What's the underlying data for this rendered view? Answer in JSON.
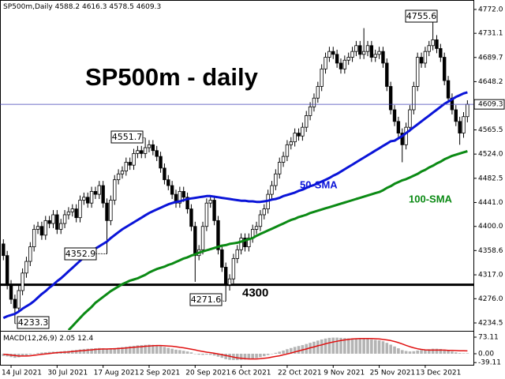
{
  "chart_data": {
    "type": "candlestick",
    "symbol": "SP500m,Daily",
    "title": "SP500m - daily",
    "categories": [
      null,
      null,
      "14 Jul 2021",
      null,
      null,
      null,
      null,
      null,
      null,
      null,
      null,
      null,
      null,
      null,
      "30 Jul 2021",
      null,
      null,
      null,
      null,
      null,
      null,
      null,
      null,
      null,
      null,
      null,
      "17 Aug 2021",
      null,
      null,
      null,
      null,
      null,
      null,
      null,
      null,
      null,
      null,
      null,
      "2 Sep 2021",
      null,
      null,
      null,
      null,
      null,
      null,
      null,
      null,
      null,
      null,
      null,
      "20 Sep 2021",
      null,
      null,
      null,
      null,
      null,
      null,
      null,
      null,
      null,
      null,
      null,
      "6 Oct 2021",
      null,
      null,
      null,
      null,
      null,
      null,
      null,
      null,
      null,
      null,
      null,
      "22 Oct 2021",
      null,
      null,
      null,
      null,
      null,
      null,
      null,
      null,
      null,
      null,
      null,
      "9 Nov 2021",
      null,
      null,
      null,
      null,
      null,
      null,
      null,
      null,
      null,
      null,
      null,
      "25 Nov 2021",
      null,
      null,
      null,
      null,
      null,
      null,
      null,
      null,
      null,
      null,
      null,
      "13 Dec 2021",
      null,
      null,
      null,
      null,
      null,
      null,
      null,
      null,
      null,
      null,
      null
    ],
    "open": [
      4370,
      4350,
      4300,
      4275,
      4260,
      4290,
      4320,
      4340,
      4365,
      4395,
      4400,
      4385,
      4410,
      4405,
      4420,
      4395,
      4405,
      4420,
      4425,
      4430,
      4415,
      4445,
      4450,
      4440,
      4460,
      4455,
      4470,
      4440,
      4410,
      4445,
      4480,
      4490,
      4495,
      4510,
      4505,
      4525,
      4530,
      4525,
      4535,
      4540,
      4530,
      4520,
      4500,
      4480,
      4470,
      4455,
      4440,
      4460,
      4450,
      4430,
      4400,
      4350,
      4360,
      4400,
      4440,
      4445,
      4410,
      4360,
      4330,
      4300,
      4310,
      4345,
      4360,
      4380,
      4365,
      4380,
      4395,
      4400,
      4420,
      4430,
      4455,
      4470,
      4490,
      4510,
      4520,
      4540,
      4545,
      4560,
      4555,
      4570,
      4590,
      4605,
      4620,
      4640,
      4670,
      4690,
      4700,
      4695,
      4680,
      4670,
      4685,
      4690,
      4700,
      4710,
      4695,
      4700,
      4710,
      4690,
      4695,
      4700,
      4680,
      4640,
      4600,
      4580,
      4560,
      4540,
      4570,
      4600,
      4640,
      4690,
      4680,
      4700,
      4710,
      4720,
      4705,
      4690,
      4650,
      4620,
      4600,
      4580,
      4560,
      4588.2
    ],
    "high": [
      4378,
      4358,
      4308,
      4283,
      4298,
      4328,
      4348,
      4373,
      4403,
      4408,
      4408,
      4418,
      4418,
      4428,
      4428,
      4413,
      4428,
      4433,
      4438,
      4438,
      4453,
      4458,
      4458,
      4468,
      4468,
      4478,
      4478,
      4448,
      4453,
      4488,
      4498,
      4503,
      4518,
      4518,
      4533,
      4538,
      4538,
      4551.7,
      4548,
      4548,
      4538,
      4528,
      4508,
      4488,
      4478,
      4463,
      4468,
      4468,
      4458,
      4438,
      4408,
      4368,
      4408,
      4448,
      4453,
      4453,
      4418,
      4368,
      4338,
      4318,
      4353,
      4368,
      4388,
      4388,
      4388,
      4403,
      4408,
      4428,
      4438,
      4463,
      4478,
      4498,
      4518,
      4528,
      4548,
      4553,
      4568,
      4568,
      4578,
      4598,
      4613,
      4628,
      4648,
      4678,
      4698,
      4708,
      4708,
      4703,
      4688,
      4693,
      4698,
      4708,
      4718,
      4718,
      4740,
      4718,
      4718,
      4703,
      4708,
      4708,
      4688,
      4648,
      4608,
      4588,
      4568,
      4578,
      4608,
      4648,
      4698,
      4698,
      4708,
      4718,
      4755.6,
      4728,
      4713,
      4698,
      4658,
      4628,
      4608,
      4588,
      4596,
      4616.3
    ],
    "low": [
      4342,
      4292,
      4267,
      4233.3,
      4252,
      4282,
      4312,
      4332,
      4357,
      4387,
      4377,
      4377,
      4397,
      4397,
      4387,
      4387,
      4397,
      4412,
      4417,
      4407,
      4407,
      4437,
      4432,
      4432,
      4447,
      4447,
      4432,
      4352.9,
      4402,
      4437,
      4472,
      4482,
      4487,
      4497,
      4497,
      4517,
      4517,
      4517,
      4527,
      4522,
      4512,
      4492,
      4472,
      4462,
      4447,
      4432,
      4432,
      4442,
      4422,
      4392,
      4305,
      4342,
      4352,
      4392,
      4432,
      4402,
      4352,
      4322,
      4271.6,
      4290,
      4302,
      4337,
      4352,
      4357,
      4357,
      4372,
      4387,
      4392,
      4412,
      4422,
      4447,
      4462,
      4482,
      4502,
      4512,
      4532,
      4537,
      4547,
      4547,
      4562,
      4582,
      4597,
      4612,
      4632,
      4662,
      4682,
      4687,
      4672,
      4662,
      4662,
      4677,
      4682,
      4692,
      4687,
      4687,
      4692,
      4682,
      4682,
      4687,
      4672,
      4632,
      4592,
      4572,
      4552,
      4510,
      4532,
      4562,
      4592,
      4632,
      4672,
      4672,
      4692,
      4702,
      4697,
      4682,
      4642,
      4612,
      4592,
      4572,
      4540,
      4552,
      4578.5
    ],
    "close": [
      4350,
      4300,
      4275,
      4260,
      4290,
      4320,
      4340,
      4365,
      4395,
      4400,
      4385,
      4410,
      4405,
      4420,
      4395,
      4405,
      4420,
      4425,
      4430,
      4415,
      4445,
      4450,
      4440,
      4460,
      4455,
      4470,
      4440,
      4410,
      4445,
      4480,
      4490,
      4495,
      4510,
      4505,
      4525,
      4530,
      4525,
      4535,
      4540,
      4530,
      4520,
      4500,
      4480,
      4470,
      4455,
      4440,
      4460,
      4450,
      4430,
      4400,
      4350,
      4360,
      4400,
      4440,
      4445,
      4410,
      4360,
      4330,
      4300,
      4310,
      4345,
      4360,
      4380,
      4365,
      4380,
      4395,
      4400,
      4420,
      4430,
      4455,
      4470,
      4490,
      4510,
      4520,
      4540,
      4545,
      4560,
      4555,
      4570,
      4590,
      4605,
      4620,
      4640,
      4670,
      4690,
      4700,
      4695,
      4680,
      4670,
      4685,
      4690,
      4700,
      4710,
      4695,
      4700,
      4710,
      4690,
      4695,
      4700,
      4680,
      4640,
      4600,
      4580,
      4560,
      4540,
      4570,
      4600,
      4640,
      4690,
      4680,
      4700,
      4710,
      4720,
      4705,
      4690,
      4650,
      4620,
      4600,
      4580,
      4560,
      4588.2,
      4609.3
    ],
    "series": [
      {
        "name": "50-SMA",
        "color": "#0a14d8",
        "values": [
          4243,
          4246,
          4248,
          4250,
          4254,
          4259,
          4263,
          4267,
          4272,
          4278,
          4284,
          4289,
          4295,
          4300,
          4306,
          4311,
          4317,
          4323,
          4329,
          4335,
          4341,
          4347,
          4353,
          4358,
          4362,
          4366,
          4370,
          4374,
          4380,
          4385,
          4390,
          4395,
          4399,
          4403,
          4407,
          4411,
          4415,
          4419,
          4423,
          4426,
          4429,
          4432,
          4435,
          4438,
          4440,
          4442,
          4443,
          4445,
          4447,
          4448,
          4449,
          4450,
          4451,
          4452,
          4452,
          4451,
          4450,
          4449,
          4448,
          4447,
          4446,
          4445,
          4444,
          4444,
          4443,
          4443,
          4442,
          4442,
          4443,
          4444,
          4446,
          4447,
          4449,
          4452,
          4454,
          4456,
          4458,
          4461,
          4463,
          4466,
          4469,
          4471,
          4474,
          4477,
          4480,
          4483,
          4487,
          4490,
          4494,
          4498,
          4502,
          4506,
          4510,
          4514,
          4518,
          4522,
          4526,
          4530,
          4534,
          4538,
          4542,
          4546,
          4547,
          4551,
          4555,
          4560,
          4565,
          4570,
          4575,
          4580,
          4585,
          4590,
          4595,
          4600,
          4605,
          4610,
          4614,
          4618,
          4622,
          4625,
          4628,
          4630
        ]
      },
      {
        "name": "100-SMA",
        "color": "#0b8a14",
        "values": [
          null,
          null,
          null,
          null,
          null,
          null,
          null,
          null,
          null,
          null,
          null,
          null,
          null,
          null,
          null,
          null,
          null,
          4222,
          4229,
          4236,
          4243,
          4250,
          4256,
          4262,
          4269,
          4274,
          4279,
          4284,
          4289,
          4293,
          4297,
          4301,
          4304,
          4307,
          4309,
          4311,
          4314,
          4317,
          4321,
          4324,
          4327,
          4329,
          4331,
          4334,
          4336,
          4339,
          4342,
          4345,
          4347,
          4350,
          4352,
          4355,
          4357,
          4359,
          4361,
          4363,
          4365,
          4367,
          4368,
          4370,
          4371,
          4372,
          4374,
          4376,
          4378,
          4380,
          4384,
          4387,
          4390,
          4393,
          4396,
          4399,
          4402,
          4405,
          4408,
          4411,
          4413,
          4416,
          4418,
          4420,
          4423,
          4425,
          4427,
          4429,
          4431,
          4433,
          4435,
          4437,
          4439,
          4441,
          4443,
          4445,
          4447,
          4449,
          4451,
          4453,
          4455,
          4457,
          4459,
          4462,
          4466,
          4469,
          4473,
          4476,
          4479,
          4481,
          4484,
          4487,
          4490,
          4494,
          4497,
          4501,
          4504,
          4508,
          4511,
          4515,
          4518,
          4521,
          4523,
          4525,
          4527,
          4529
        ]
      }
    ],
    "level": 4300,
    "ylim": [
      4222.3,
      4782.8
    ],
    "yticks": [
      {
        "value": 4772,
        "label": "4772.0"
      },
      4731.1,
      4689.7,
      4648.2,
      4565.5,
      {
        "value": 4524,
        "label": "4524.0"
      },
      4482.5,
      {
        "value": 4441,
        "label": "4441.0"
      },
      {
        "value": 4400,
        "label": "4400.0"
      },
      4358.6,
      {
        "value": 4317,
        "label": "4317.0"
      },
      {
        "value": 4276,
        "label": "4276.0"
      },
      4234.5
    ],
    "macd": {
      "title": "MACD(12,26,9)",
      "values": [
        -10,
        -12,
        -15,
        -18,
        -16,
        -12,
        -8,
        -4,
        0,
        3,
        5,
        6,
        8,
        9,
        9,
        10,
        12,
        13,
        15,
        17,
        19,
        21,
        22,
        23,
        24,
        25,
        24,
        22,
        23,
        25,
        27,
        29,
        31,
        33,
        35,
        37,
        38,
        39,
        40,
        39,
        37,
        34,
        30,
        26,
        22,
        18,
        16,
        13,
        10,
        6,
        0,
        -4,
        -5,
        -4,
        -5,
        -8,
        -13,
        -18,
        -24,
        -27,
        -28,
        -28,
        -27,
        -26,
        -24,
        -22,
        -19,
        -15,
        -11,
        -6,
        -1,
        4,
        9,
        14,
        20,
        25,
        30,
        34,
        38,
        43,
        48,
        53,
        58,
        63,
        67,
        70,
        71,
        71,
        70,
        69,
        68,
        68,
        68,
        67,
        66,
        65,
        63,
        61,
        59,
        55,
        48,
        40,
        32,
        24,
        16,
        12,
        10,
        11,
        14,
        16,
        18,
        20,
        22,
        22,
        21,
        18,
        14,
        10,
        6,
        3,
        2,
        2.05
      ],
      "signal": [
        -2,
        -4,
        -6,
        -8,
        -10,
        -10,
        -10,
        -9,
        -7,
        -5,
        -3,
        -1,
        1,
        3,
        5,
        6,
        7,
        8,
        10,
        11,
        13,
        14,
        16,
        17,
        19,
        20,
        21,
        21,
        22,
        22,
        23,
        24,
        25,
        27,
        28,
        30,
        31,
        33,
        34,
        35,
        36,
        36,
        35,
        34,
        33,
        31,
        28,
        26,
        23,
        20,
        17,
        13,
        10,
        7,
        5,
        2,
        -1,
        -4,
        -8,
        -11,
        -15,
        -18,
        -20,
        -22,
        -23,
        -23,
        -23,
        -22,
        -20,
        -18,
        -15,
        -12,
        -9,
        -5,
        -1,
        3,
        8,
        12,
        17,
        21,
        26,
        30,
        35,
        39,
        44,
        48,
        52,
        55,
        58,
        61,
        63,
        65,
        66,
        67,
        67,
        67,
        67,
        66,
        65,
        63,
        61,
        58,
        54,
        49,
        43,
        37,
        31,
        26,
        22,
        19,
        17,
        16,
        16,
        16,
        16,
        16,
        15,
        15,
        14,
        13,
        13,
        12.4
      ],
      "bar_color": "#b4b4b4",
      "signal_color": "#e01010",
      "ylim": [
        -48.8,
        90.5
      ],
      "yticks": [
        73.11,
        {
          "value": 0,
          "label": "0.00"
        },
        -39.11
      ]
    }
  }
}
